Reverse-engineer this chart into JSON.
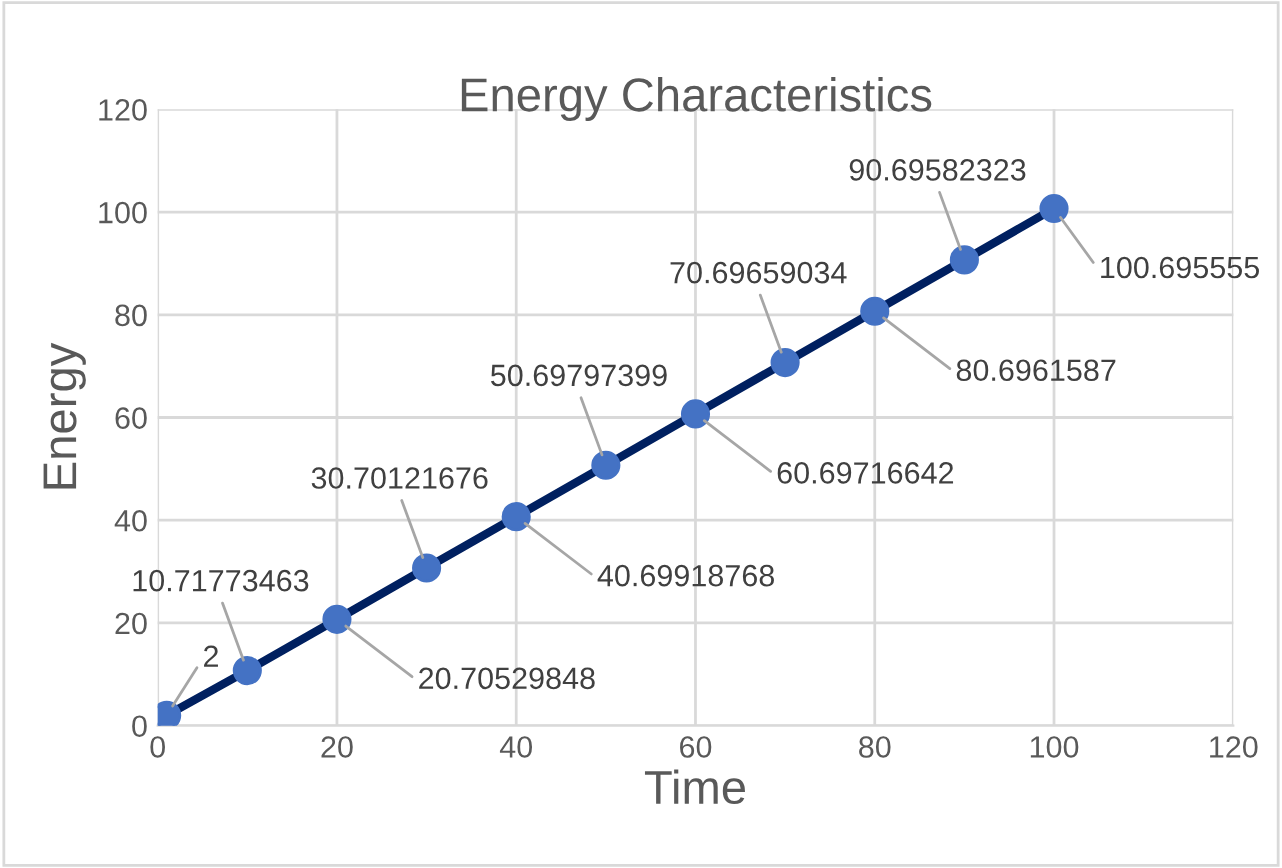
{
  "chart_data": {
    "type": "line",
    "title": "Energy Characteristics",
    "xlabel": "Time",
    "ylabel": "Energy",
    "x": [
      1,
      10,
      20,
      30,
      40,
      50,
      60,
      70,
      80,
      90,
      100
    ],
    "series": [
      {
        "color": "#002060",
        "colors": [
          "#4472c4",
          "#4472c4",
          "#4472c4",
          "#4472c4",
          "#4472c4",
          "#4472c4",
          "#4472c4",
          "#4472c4",
          "#4472c4",
          "#4472c4",
          "#4472c4"
        ],
        "values": [
          2,
          10.71773463,
          20.70529848,
          30.70121676,
          40.69918768,
          50.69797399,
          60.69716642,
          70.69659034,
          80.6961587,
          90.69582323,
          100.695555
        ]
      }
    ],
    "data_labels": true,
    "marker": "circle",
    "xlim": [
      0,
      120
    ],
    "xticks": [
      0,
      20,
      40,
      60,
      80,
      100,
      120
    ],
    "ylim": [
      0,
      120
    ],
    "yticks": [
      0,
      20,
      40,
      60,
      80,
      100,
      120
    ],
    "grid": true
  }
}
